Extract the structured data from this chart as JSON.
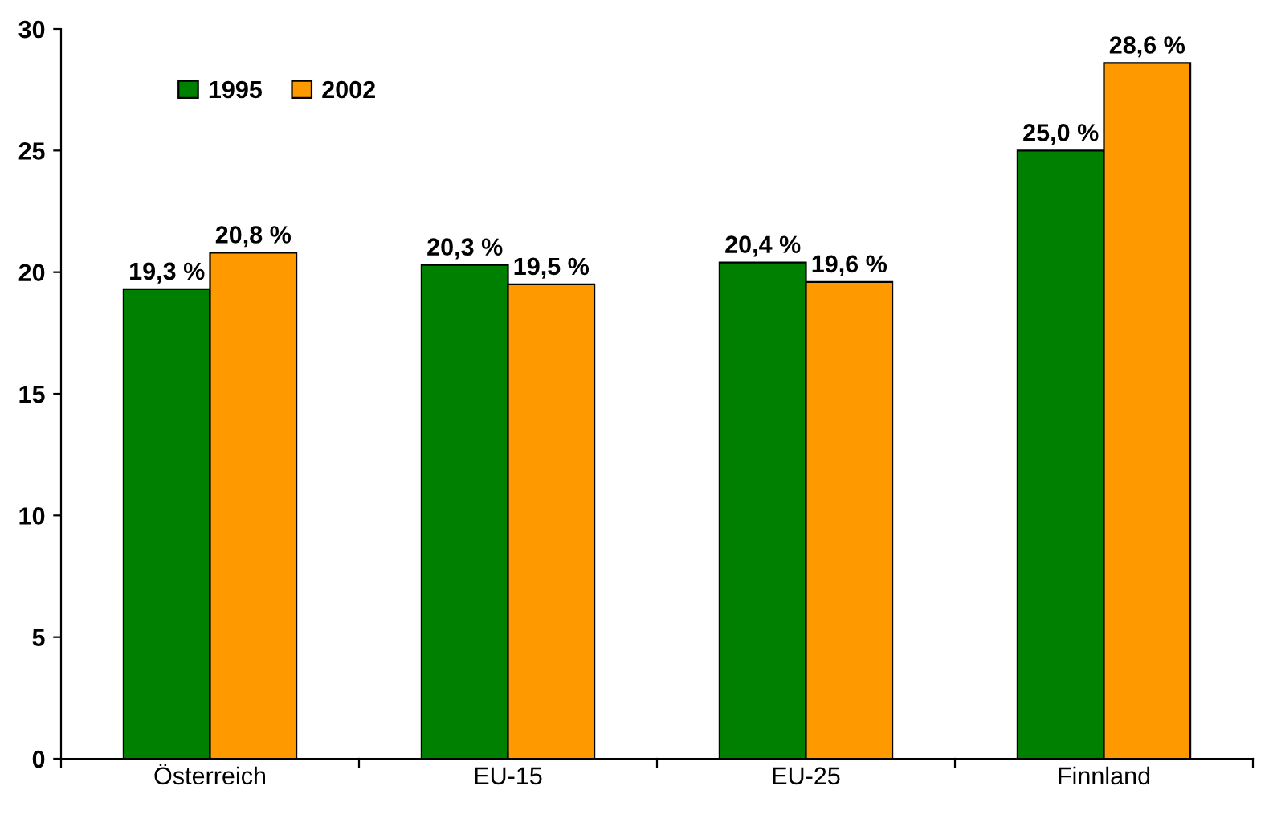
{
  "chart_data": {
    "type": "bar",
    "categories": [
      "Österreich",
      "EU-15",
      "EU-25",
      "Finnland"
    ],
    "series": [
      {
        "name": "1995",
        "color": "#008000",
        "values": [
          19.3,
          20.3,
          20.4,
          25.0
        ],
        "value_labels": [
          "19,3 %",
          "20,3 %",
          "20,4 %",
          "25,0 %"
        ]
      },
      {
        "name": "2002",
        "color": "#ff9900",
        "values": [
          20.8,
          19.5,
          19.6,
          28.6
        ],
        "value_labels": [
          "20,8 %",
          "19,5 %",
          "19,6 %",
          "28,6 %"
        ]
      }
    ],
    "ylim": [
      0,
      30
    ],
    "yticks": [
      0,
      5,
      10,
      15,
      20,
      25,
      30
    ],
    "grid": false,
    "legend": "top left"
  }
}
